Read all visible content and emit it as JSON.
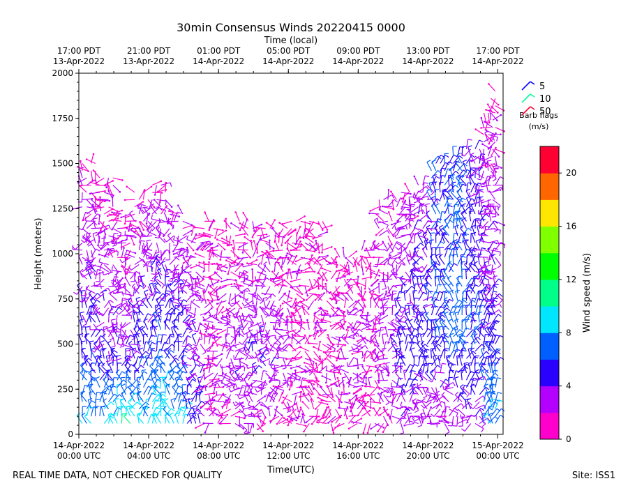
{
  "chart_data": {
    "type": "wind-barb",
    "title": "30min Consensus Winds 20220415 0000",
    "top_axis_label": "Time (local)",
    "xlabel": "Time(UTC)",
    "ylabel": "Height (meters)",
    "ylim": [
      0,
      2000
    ],
    "xlim_hours": [
      0,
      24.3
    ],
    "y_ticks": [
      0,
      250,
      500,
      750,
      1000,
      1250,
      1500,
      1750,
      2000
    ],
    "bottom_ticks": [
      {
        "hour": 0,
        "line1": "14-Apr-2022",
        "line2": "00:00 UTC"
      },
      {
        "hour": 4,
        "line1": "14-Apr-2022",
        "line2": "04:00 UTC"
      },
      {
        "hour": 8,
        "line1": "14-Apr-2022",
        "line2": "08:00 UTC"
      },
      {
        "hour": 12,
        "line1": "14-Apr-2022",
        "line2": "12:00 UTC"
      },
      {
        "hour": 16,
        "line1": "14-Apr-2022",
        "line2": "16:00 UTC"
      },
      {
        "hour": 20,
        "line1": "14-Apr-2022",
        "line2": "20:00 UTC"
      },
      {
        "hour": 24,
        "line1": "15-Apr-2022",
        "line2": "00:00 UTC"
      }
    ],
    "top_ticks": [
      {
        "hour": 0,
        "line1": "17:00 PDT",
        "line2": "13-Apr-2022"
      },
      {
        "hour": 4,
        "line1": "21:00 PDT",
        "line2": "13-Apr-2022"
      },
      {
        "hour": 8,
        "line1": "01:00 PDT",
        "line2": "14-Apr-2022"
      },
      {
        "hour": 12,
        "line1": "05:00 PDT",
        "line2": "14-Apr-2022"
      },
      {
        "hour": 16,
        "line1": "09:00 PDT",
        "line2": "14-Apr-2022"
      },
      {
        "hour": 20,
        "line1": "13:00 PDT",
        "line2": "14-Apr-2022"
      },
      {
        "hour": 24,
        "line1": "17:00 PDT",
        "line2": "14-Apr-2022"
      }
    ],
    "colorbar": {
      "label": "Wind speed (m/s)",
      "min": 0,
      "max": 22,
      "ticks": [
        0,
        4,
        8,
        12,
        16,
        20
      ],
      "colors": [
        "#ff00cc",
        "#b400ff",
        "#2a00ff",
        "#0060ff",
        "#00e6ff",
        "#00ff88",
        "#00ff00",
        "#80ff00",
        "#ffe600",
        "#ff6600",
        "#ff0033"
      ]
    },
    "barb_legend": {
      "title_line1": "Barb flags",
      "title_line2": "(m/s)",
      "entries": [
        {
          "value": "5",
          "color": "#0000ff"
        },
        {
          "value": "10",
          "color": "#00ff99"
        },
        {
          "value": "50",
          "color": "#ff0033"
        }
      ]
    },
    "profiles": [
      {
        "hour": 0.2,
        "top": 1500,
        "low_speed": 8.5,
        "mid_speed": 5,
        "high_speed": 1.5,
        "dir": "mixed"
      },
      {
        "hour": 1.2,
        "top": 1450,
        "low_speed": 9,
        "mid_speed": 4,
        "high_speed": 1.5,
        "dir": "mixed"
      },
      {
        "hour": 2.2,
        "top": 1250,
        "low_speed": 11,
        "mid_speed": 4,
        "high_speed": 1.5,
        "dir": "mixed"
      },
      {
        "hour": 3.2,
        "top": 1350,
        "low_speed": 9,
        "mid_speed": 5,
        "high_speed": 1.5,
        "dir": "mixed"
      },
      {
        "hour": 4.2,
        "top": 1380,
        "low_speed": 10,
        "mid_speed": 6,
        "high_speed": 2,
        "dir": "mixed"
      },
      {
        "hour": 5.2,
        "top": 1250,
        "low_speed": 9,
        "mid_speed": 5.5,
        "high_speed": 2,
        "dir": "mixed"
      },
      {
        "hour": 6.2,
        "top": 1100,
        "low_speed": 5,
        "mid_speed": 4,
        "high_speed": 2,
        "dir": "mixed"
      },
      {
        "hour": 7.2,
        "top": 1200,
        "low_speed": 1.5,
        "mid_speed": 2,
        "high_speed": 1.5,
        "dir": "mixed"
      },
      {
        "hour": 8.2,
        "top": 1150,
        "low_speed": 1.5,
        "mid_speed": 3,
        "high_speed": 1.5,
        "dir": "mixed"
      },
      {
        "hour": 9.2,
        "top": 1180,
        "low_speed": 2,
        "mid_speed": 4,
        "high_speed": 1.5,
        "dir": "mixed"
      },
      {
        "hour": 10.2,
        "top": 1150,
        "low_speed": 1.5,
        "mid_speed": 4,
        "high_speed": 1.5,
        "dir": "mixed"
      },
      {
        "hour": 11.2,
        "top": 1150,
        "low_speed": 1.5,
        "mid_speed": 3,
        "high_speed": 1.5,
        "dir": "mixed"
      },
      {
        "hour": 12.2,
        "top": 1180,
        "low_speed": 1.5,
        "mid_speed": 2,
        "high_speed": 1.5,
        "dir": "mixed"
      },
      {
        "hour": 13.2,
        "top": 1180,
        "low_speed": 1.5,
        "mid_speed": 1.5,
        "high_speed": 1.5,
        "dir": "mixed"
      },
      {
        "hour": 14.2,
        "top": 1000,
        "low_speed": 1.5,
        "mid_speed": 2,
        "high_speed": 1.5,
        "dir": "mixed"
      },
      {
        "hour": 15.2,
        "top": 1000,
        "low_speed": 1.5,
        "mid_speed": 3,
        "high_speed": 1.5,
        "dir": "mixed"
      },
      {
        "hour": 16.2,
        "top": 1050,
        "low_speed": 1.5,
        "mid_speed": 2,
        "high_speed": 1.5,
        "dir": "mixed"
      },
      {
        "hour": 17.2,
        "top": 1300,
        "low_speed": 2,
        "mid_speed": 3,
        "high_speed": 2,
        "dir": "mixed"
      },
      {
        "hour": 18.2,
        "top": 1350,
        "low_speed": 3,
        "mid_speed": 5,
        "high_speed": 2,
        "dir": "mixed"
      },
      {
        "hour": 19.2,
        "top": 1400,
        "low_speed": 2.5,
        "mid_speed": 5,
        "high_speed": 3,
        "dir": "mixed"
      },
      {
        "hour": 20.2,
        "top": 1500,
        "low_speed": 2,
        "mid_speed": 5.5,
        "high_speed": 6,
        "dir": "mixed"
      },
      {
        "hour": 21.2,
        "top": 1550,
        "low_speed": 2,
        "mid_speed": 7,
        "high_speed": 6,
        "dir": "mixed"
      },
      {
        "hour": 22.2,
        "top": 1600,
        "low_speed": 3,
        "mid_speed": 6,
        "high_speed": 4,
        "dir": "mixed"
      },
      {
        "hour": 23.2,
        "top": 1800,
        "low_speed": 7.5,
        "mid_speed": 5,
        "high_speed": 1.5,
        "dir": "mixed"
      },
      {
        "hour": 23.6,
        "top": 1900,
        "low_speed": 8.5,
        "mid_speed": 4,
        "high_speed": 1.5,
        "dir": "mixed"
      }
    ]
  },
  "footer": {
    "quality_note": "REAL TIME DATA, NOT CHECKED FOR QUALITY",
    "site": "Site: ISS1"
  }
}
